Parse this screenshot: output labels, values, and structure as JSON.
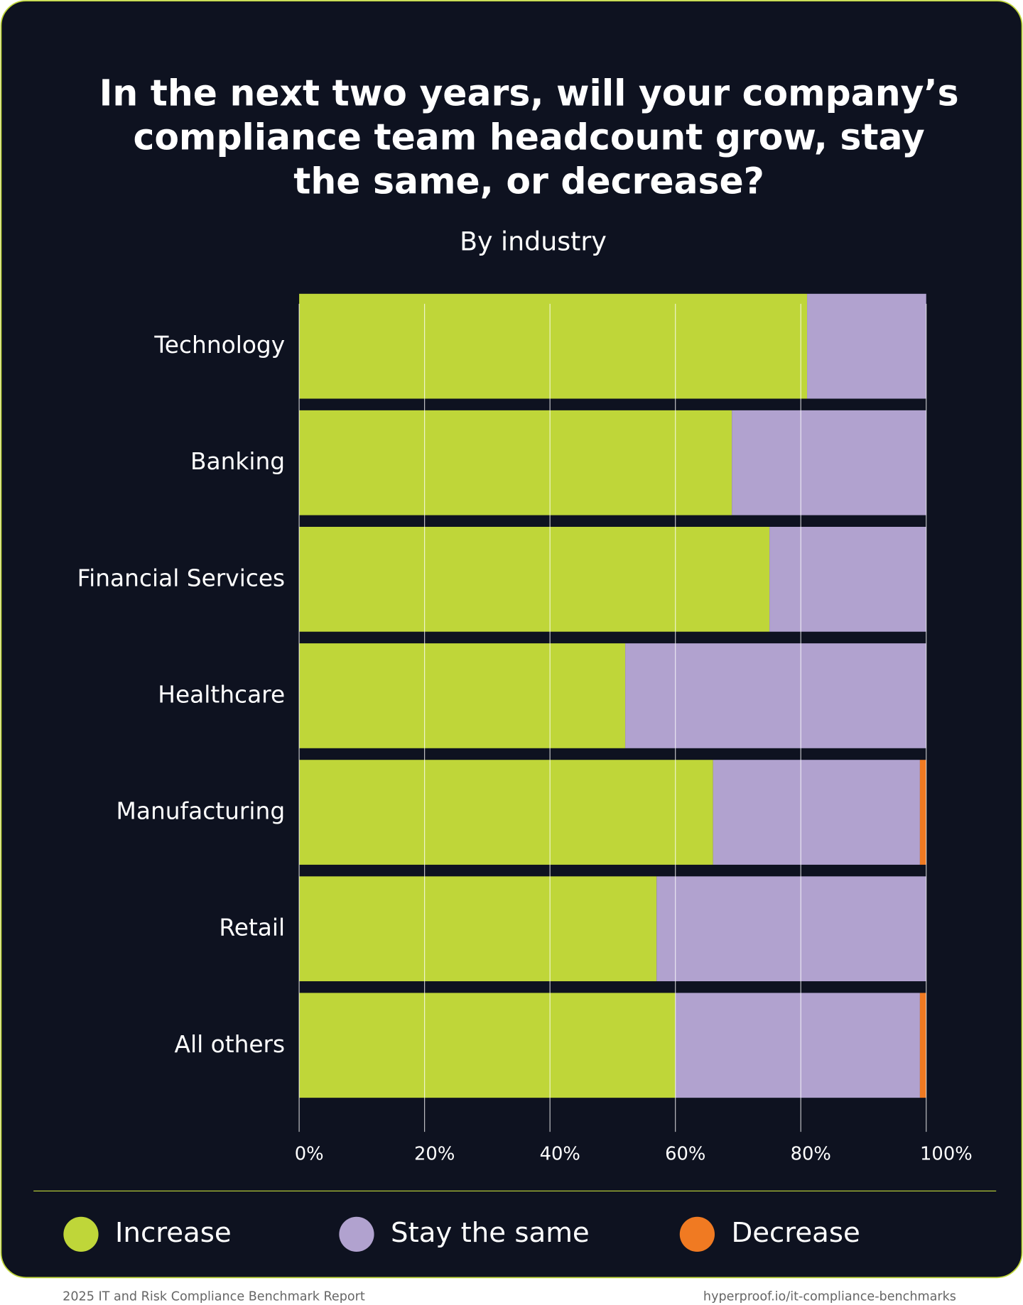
{
  "chart_data": {
    "type": "stacked-bar-horizontal",
    "title": [
      "In the next two years, will your company’s",
      "compliance team headcount grow, stay",
      "the same, or decrease?"
    ],
    "subtitle": "By industry",
    "categories": [
      "Technology",
      "Banking",
      "Financial Services",
      "Healthcare",
      "Manufacturing",
      "Retail",
      "All others"
    ],
    "series": [
      {
        "name": "Increase",
        "color": "#bfd639",
        "values": [
          81,
          69,
          75,
          52,
          66,
          57,
          60
        ]
      },
      {
        "name": "Stay the same",
        "color": "#b1a2cf",
        "values": [
          19,
          31,
          25,
          48,
          33,
          43,
          39
        ]
      },
      {
        "name": "Decrease",
        "color": "#f07a22",
        "values": [
          0,
          0,
          0,
          0,
          1,
          0,
          1
        ]
      }
    ],
    "xlim": [
      0,
      100
    ],
    "xticks": [
      {
        "value": 0,
        "label": "0%"
      },
      {
        "value": 20,
        "label": "20%"
      },
      {
        "value": 40,
        "label": "40%"
      },
      {
        "value": 60,
        "label": "60%"
      },
      {
        "value": 80,
        "label": "80%"
      },
      {
        "value": 100,
        "label": "100%"
      }
    ],
    "grid": true,
    "legend": "bottom",
    "footer_left": "2025 IT and Risk Compliance Benchmark Report",
    "footer_right": "hyperproof.io/it-compliance-benchmarks"
  }
}
